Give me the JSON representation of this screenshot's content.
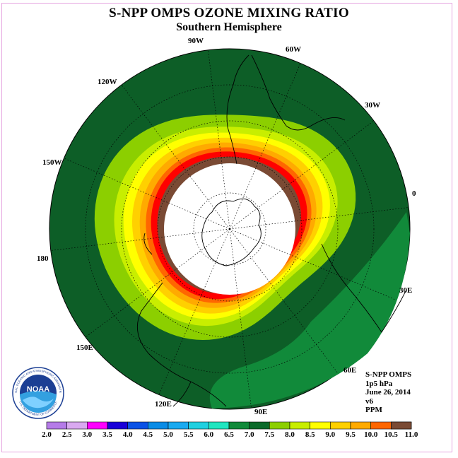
{
  "header": {
    "title": "S-NPP OMPS OZONE MIXING RATIO",
    "subtitle": "Southern Hemisphere"
  },
  "longitude_labels": [
    {
      "text": "90W",
      "lon": -90
    },
    {
      "text": "60W",
      "lon": -60
    },
    {
      "text": "30W",
      "lon": -30
    },
    {
      "text": "0",
      "lon": 0
    },
    {
      "text": "30E",
      "lon": 30
    },
    {
      "text": "60E",
      "lon": 60
    },
    {
      "text": "90E",
      "lon": 90
    },
    {
      "text": "120E",
      "lon": 120
    },
    {
      "text": "150E",
      "lon": 150
    },
    {
      "text": "180",
      "lon": 180
    },
    {
      "text": "150W",
      "lon": -150
    },
    {
      "text": "120W",
      "lon": -120
    }
  ],
  "info": {
    "instrument": "S-NPP OMPS",
    "level": "1p5 hPa",
    "date": "June 26, 2014",
    "version": "v6",
    "units": "PPM"
  },
  "logo": {
    "text": "NOAA",
    "ring_text": "NATIONAL OCEANIC AND ATMOSPHERIC ADMINISTRATION",
    "ring_text_bottom": "U.S. DEPARTMENT OF COMMERCE"
  },
  "colorbar": {
    "ticks": [
      "2.0",
      "2.5",
      "3.0",
      "3.5",
      "4.0",
      "4.5",
      "5.0",
      "5.5",
      "6.0",
      "6.5",
      "7.0",
      "7.5",
      "8.0",
      "8.5",
      "9.0",
      "9.5",
      "10.0",
      "10.5",
      "11.0"
    ],
    "colors": [
      "#b57be8",
      "#d9a9f0",
      "#ff00ff",
      "#1a00d8",
      "#0a52e6",
      "#0a8ce6",
      "#1aaaf0",
      "#20d0e0",
      "#20e6c0",
      "#118a3a",
      "#0b6a2a",
      "#8ccf00",
      "#c8ee00",
      "#ffff00",
      "#ffd000",
      "#ffaa00",
      "#ff6600",
      "#ff0000",
      "#7a4a34"
    ]
  },
  "map_style": {
    "outer_color": "#0d5e27",
    "mid_green": "#118a3a",
    "light_green": "#8ccf00",
    "yellow_green": "#c8ee00",
    "yellow": "#ffff00",
    "gold": "#ffd000",
    "orange": "#ffaa00",
    "dark_orange": "#ff6600",
    "red": "#ff0000",
    "brown": "#7a4a34",
    "no_data": "#ffffff"
  }
}
